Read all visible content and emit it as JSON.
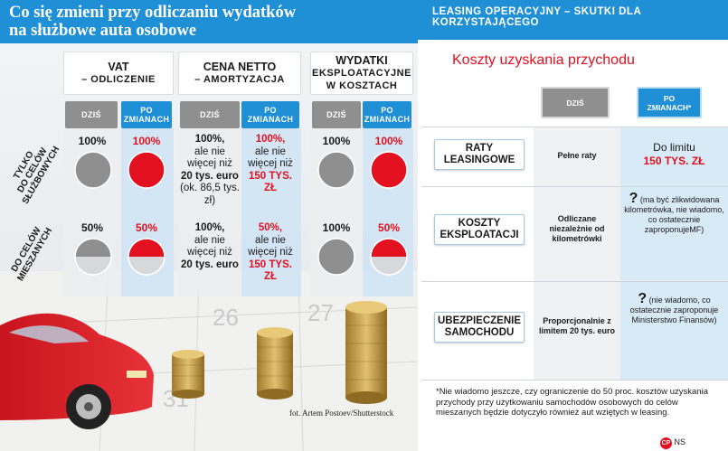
{
  "left": {
    "title_line1": "Co się zmieni przy odliczaniu wydatków",
    "title_line2": "na służbowe auta osobowe",
    "columns": [
      {
        "line1": "VAT",
        "line2": "– ODLICZENIE"
      },
      {
        "line1": "CENA NETTO",
        "line2": "– AMORTYZACJA"
      },
      {
        "line1": "WYDATKI",
        "line2": "EKSPLOATACYJNE",
        "line3": "W KOSZTACH"
      }
    ],
    "sub_now": "DZIŚ",
    "sub_after_line1": "PO",
    "sub_after_line2": "ZMIANACH",
    "row1_label_line1": "TYLKO",
    "row1_label_line2": "DO CELÓW",
    "row1_label_line3": "SŁUŻBOWYCH",
    "row2_label_line1": "DO CELÓW",
    "row2_label_line2": "MIESZANYCH",
    "row1": {
      "vat_now": "100%",
      "vat_after": "100%",
      "amort_now_bold": "100%,",
      "amort_now_text": "ale nie więcej niż",
      "amort_now_limit": "20 tys. euro",
      "amort_now_note": "(ok. 86,5 tys. zł)",
      "amort_after_bold": "100%,",
      "amort_after_text": "ale nie więcej niż",
      "amort_after_limit": "150 TYS. ZŁ",
      "expl_now": "100%",
      "expl_after": "100%"
    },
    "row2": {
      "vat_now": "50%",
      "vat_after": "50%",
      "amort_now_bold": "100%,",
      "amort_now_text": "ale nie więcej niż",
      "amort_now_limit": "20 tys. euro",
      "amort_after_bold": "50%,",
      "amort_after_text": "ale nie więcej niż",
      "amort_after_limit": "150 TYS. ZŁ",
      "expl_now": "100%",
      "expl_after": "50%"
    },
    "pie_fractions": {
      "row1": {
        "vat_now": 1.0,
        "vat_after": 1.0,
        "expl_now": 1.0,
        "expl_after": 1.0
      },
      "row2": {
        "vat_now": 0.5,
        "vat_after": 0.5,
        "expl_now": 1.0,
        "expl_after": 0.5
      }
    },
    "credit": "fot. Artem Postoev/Shutterstock"
  },
  "right": {
    "title_line1": "LEASING OPERACYJNY – SKUTKI DLA",
    "title_line2": "KORZYSTAJĄCEGO",
    "subtitle": "Koszty uzyskania przychodu",
    "sub_now": "DZIŚ",
    "sub_after_line1": "PO",
    "sub_after_line2": "ZMIANACH*",
    "rows": [
      {
        "label_line1": "RATY",
        "label_line2": "LEASINGOWE",
        "now": "Pełne raty",
        "after_text": "Do limitu",
        "after_limit": "150 TYS. ZŁ"
      },
      {
        "label_line1": "KOSZTY",
        "label_line2": "EKSPLOATACJI",
        "now": "Odliczane niezależnie od kilometrówki",
        "after_q": "?",
        "after_text": "(ma być zlikwidowana kilometrówka, nie wiadomo, co ostatecznie zaproponujeMF)"
      },
      {
        "label_line1": "UBEZPIECZENIE",
        "label_line2": "SAMOCHODU",
        "now": "Proporcjonalnie z limitem 20 tys. euro",
        "after_q": "?",
        "after_text": "(nie wiadomo, co ostatecznie zaproponuje Ministerstwo Finansów)"
      }
    ],
    "footnote": "*Nie wiadomo jeszcze, czy ograniczenie do 50 proc. kosztów uzyskania przychody przy użytkowaniu samochodów osobowych do celów mieszanych będzie dotyczyło również aut wziętych w leasing.",
    "signature_logo": "CP",
    "signature": "NS"
  },
  "colors": {
    "blue": "#1f8fd6",
    "red": "#e3101f",
    "grey": "#8f8f8f"
  }
}
